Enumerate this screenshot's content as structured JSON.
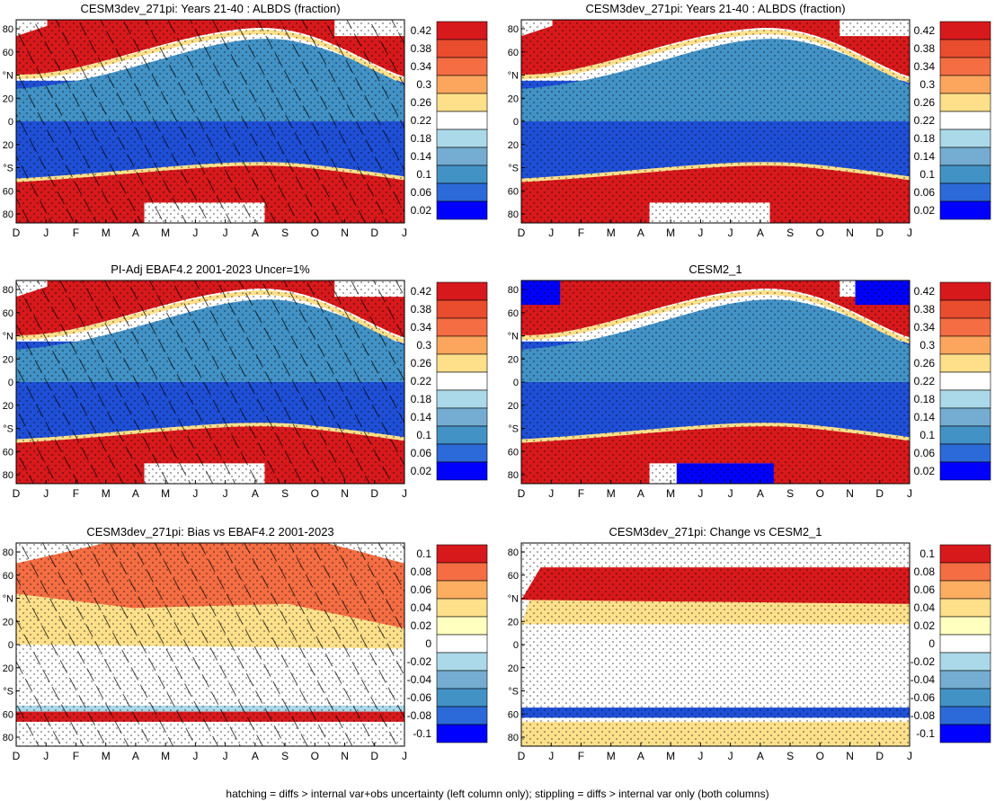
{
  "footer": "hatching = diffs > internal var+obs uncertainty (left column only); stippling = diffs > internal var only (both columns)",
  "colors": {
    "red": "#d7191c",
    "orange": "#f46d43",
    "yellow": "#fee08b",
    "white": "#ffffff",
    "light_blue": "#abd9e9",
    "mid_blue": "#4292c6",
    "dark_blue": "#1f4fd6",
    "deep_blue": "#0000ff"
  },
  "chart_data": [
    {
      "type": "heatmap",
      "title": "CESM3dev_271pi: Years 21-40 : ALBDS (fraction)",
      "kind": "climatology",
      "x_ticks": [
        "D",
        "J",
        "F",
        "M",
        "A",
        "M",
        "J",
        "J",
        "A",
        "S",
        "O",
        "N",
        "D",
        "J"
      ],
      "y_ticks": [
        "80",
        "60",
        "°N",
        "20",
        "0",
        "20",
        "°S",
        "60",
        "80"
      ],
      "colorbar": [
        "0.42",
        "0.38",
        "0.34",
        "0.3",
        "0.26",
        "0.22",
        "0.18",
        "0.14",
        "0.1",
        "0.06",
        "0.02"
      ],
      "hatching": true,
      "stippling": true
    },
    {
      "type": "heatmap",
      "title": "CESM3dev_271pi: Years 21-40 : ALBDS (fraction)",
      "kind": "climatology",
      "x_ticks": [
        "D",
        "J",
        "F",
        "M",
        "A",
        "M",
        "J",
        "J",
        "A",
        "S",
        "O",
        "N",
        "D",
        "J"
      ],
      "y_ticks": [
        "80",
        "60",
        "°N",
        "20",
        "0",
        "20",
        "°S",
        "60",
        "80"
      ],
      "colorbar": [
        "0.42",
        "0.38",
        "0.34",
        "0.3",
        "0.26",
        "0.22",
        "0.18",
        "0.14",
        "0.1",
        "0.06",
        "0.02"
      ],
      "hatching": false,
      "stippling": true
    },
    {
      "type": "heatmap",
      "title": "PI-Adj EBAF4.2 2001-2023 Uncer=1%",
      "kind": "climatology",
      "x_ticks": [
        "D",
        "J",
        "F",
        "M",
        "A",
        "M",
        "J",
        "J",
        "A",
        "S",
        "O",
        "N",
        "D",
        "J"
      ],
      "y_ticks": [
        "80",
        "60",
        "°N",
        "20",
        "0",
        "20",
        "°S",
        "60",
        "80"
      ],
      "colorbar": [
        "0.42",
        "0.38",
        "0.34",
        "0.3",
        "0.26",
        "0.22",
        "0.18",
        "0.14",
        "0.1",
        "0.06",
        "0.02"
      ],
      "hatching": true,
      "stippling": true
    },
    {
      "type": "heatmap",
      "title": "CESM2_1",
      "kind": "climatology_cesm2",
      "x_ticks": [
        "D",
        "J",
        "F",
        "M",
        "A",
        "M",
        "J",
        "J",
        "A",
        "S",
        "O",
        "N",
        "D",
        "J"
      ],
      "y_ticks": [
        "80",
        "60",
        "°N",
        "20",
        "0",
        "20",
        "°S",
        "60",
        "80"
      ],
      "colorbar": [
        "0.42",
        "0.38",
        "0.34",
        "0.3",
        "0.26",
        "0.22",
        "0.18",
        "0.14",
        "0.1",
        "0.06",
        "0.02"
      ],
      "hatching": false,
      "stippling": true
    },
    {
      "type": "heatmap",
      "title": "CESM3dev_271pi: Bias vs EBAF4.2 2001-2023",
      "kind": "bias",
      "x_ticks": [
        "D",
        "J",
        "F",
        "M",
        "A",
        "M",
        "J",
        "J",
        "A",
        "S",
        "O",
        "N",
        "D",
        "J"
      ],
      "y_ticks": [
        "80",
        "60",
        "°N",
        "20",
        "0",
        "20",
        "°S",
        "60",
        "80"
      ],
      "colorbar": [
        "0.1",
        "0.08",
        "0.06",
        "0.04",
        "0.02",
        "0",
        "-0.02",
        "-0.04",
        "-0.06",
        "-0.08",
        "-0.1"
      ],
      "hatching": true,
      "stippling": true
    },
    {
      "type": "heatmap",
      "title": "CESM3dev_271pi: Change vs CESM2_1",
      "kind": "change",
      "x_ticks": [
        "D",
        "J",
        "F",
        "M",
        "A",
        "M",
        "J",
        "J",
        "A",
        "S",
        "O",
        "N",
        "D",
        "J"
      ],
      "y_ticks": [
        "80",
        "60",
        "°N",
        "20",
        "0",
        "20",
        "°S",
        "60",
        "80"
      ],
      "colorbar": [
        "0.1",
        "0.08",
        "0.06",
        "0.04",
        "0.02",
        "0",
        "-0.02",
        "-0.04",
        "-0.06",
        "-0.08",
        "-0.1"
      ],
      "hatching": false,
      "stippling": true
    }
  ]
}
